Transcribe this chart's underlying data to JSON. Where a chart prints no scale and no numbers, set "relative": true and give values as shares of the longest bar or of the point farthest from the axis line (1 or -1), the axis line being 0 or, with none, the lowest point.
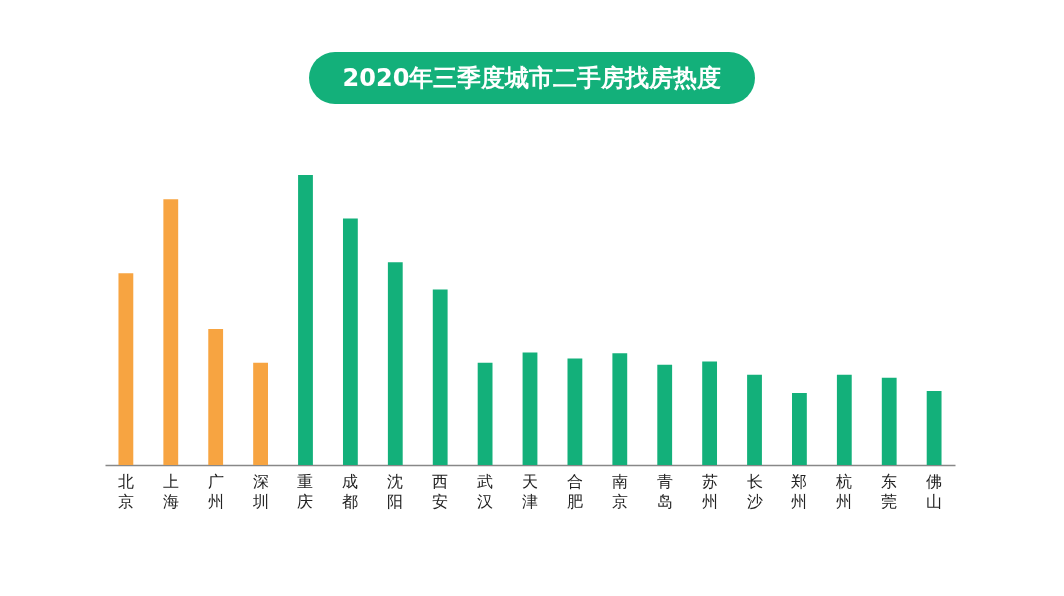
{
  "chart_data": {
    "type": "bar",
    "title": "2020年三季度城市二手房找房热度",
    "relative": true,
    "legend": false,
    "categories": [
      "北京",
      "上海",
      "广州",
      "深圳",
      "重庆",
      "成都",
      "沈阳",
      "西安",
      "武汉",
      "天津",
      "合肥",
      "南京",
      "青岛",
      "苏州",
      "长沙",
      "郑州",
      "杭州",
      "东莞",
      "佛山"
    ],
    "values": [
      0.661,
      0.916,
      0.469,
      0.353,
      1,
      0.85,
      0.699,
      0.605,
      0.353,
      0.388,
      0.367,
      0.385,
      0.346,
      0.357,
      0.311,
      0.248,
      0.311,
      0.301,
      0.255
    ],
    "colors": [
      "#f7a441",
      "#f7a441",
      "#f7a441",
      "#f7a441",
      "#13b07a",
      "#13b07a",
      "#13b07a",
      "#13b07a",
      "#13b07a",
      "#13b07a",
      "#13b07a",
      "#13b07a",
      "#13b07a",
      "#13b07a",
      "#13b07a",
      "#13b07a",
      "#13b07a",
      "#13b07a",
      "#13b07a"
    ]
  }
}
